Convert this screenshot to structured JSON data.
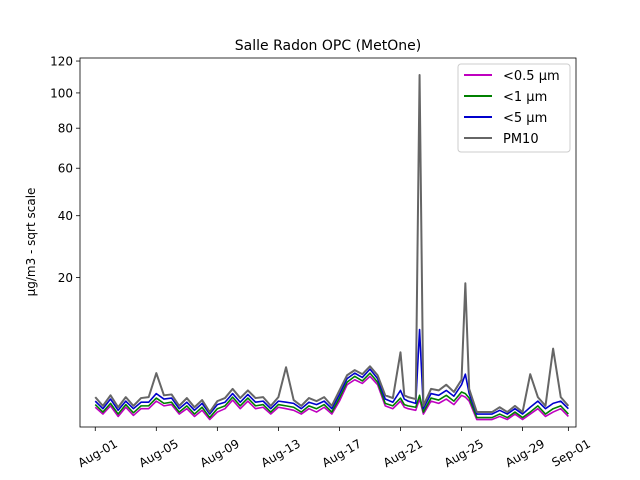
{
  "chart_data": {
    "type": "line",
    "title": "Salle Radon OPC (MetOne)",
    "xlabel": "",
    "ylabel": "µg/m3 - sqrt scale",
    "yscale": "sqrt",
    "ylim": [
      0,
      122
    ],
    "xlim": [
      "2023-07-31T00:00",
      "2023-09-01T12:00"
    ],
    "x_ticks": [
      "2023-08-01",
      "2023-08-05",
      "2023-08-09",
      "2023-08-13",
      "2023-08-17",
      "2023-08-21",
      "2023-08-25",
      "2023-08-29",
      "2023-09-01"
    ],
    "x_tick_labels": [
      "Aug-01",
      "Aug-05",
      "Aug-09",
      "Aug-13",
      "Aug-17",
      "Aug-21",
      "Aug-25",
      "Aug-29",
      "Sep-01"
    ],
    "y_ticks": [
      20,
      40,
      60,
      80,
      100,
      120
    ],
    "y_tick_labels": [
      "20",
      "40",
      "60",
      "80",
      "100",
      "120"
    ],
    "grid": false,
    "legend_position": "top-right",
    "x": [
      "2023-08-01T00:00",
      "2023-08-01T12:00",
      "2023-08-02T00:00",
      "2023-08-02T12:00",
      "2023-08-03T00:00",
      "2023-08-03T12:00",
      "2023-08-04T00:00",
      "2023-08-04T12:00",
      "2023-08-05T00:00",
      "2023-08-05T12:00",
      "2023-08-06T00:00",
      "2023-08-06T12:00",
      "2023-08-07T00:00",
      "2023-08-07T12:00",
      "2023-08-08T00:00",
      "2023-08-08T12:00",
      "2023-08-09T00:00",
      "2023-08-09T12:00",
      "2023-08-10T00:00",
      "2023-08-10T12:00",
      "2023-08-11T00:00",
      "2023-08-11T12:00",
      "2023-08-12T00:00",
      "2023-08-12T12:00",
      "2023-08-13T00:00",
      "2023-08-13T12:00",
      "2023-08-14T00:00",
      "2023-08-14T12:00",
      "2023-08-15T00:00",
      "2023-08-15T12:00",
      "2023-08-16T00:00",
      "2023-08-16T12:00",
      "2023-08-17T00:00",
      "2023-08-17T12:00",
      "2023-08-18T00:00",
      "2023-08-18T12:00",
      "2023-08-19T00:00",
      "2023-08-19T12:00",
      "2023-08-20T00:00",
      "2023-08-20T12:00",
      "2023-08-21T00:00",
      "2023-08-21T06:00",
      "2023-08-21T12:00",
      "2023-08-22T00:00",
      "2023-08-22T06:00",
      "2023-08-22T12:00",
      "2023-08-23T00:00",
      "2023-08-23T12:00",
      "2023-08-24T00:00",
      "2023-08-24T12:00",
      "2023-08-25T00:00",
      "2023-08-25T06:00",
      "2023-08-25T12:00",
      "2023-08-26T00:00",
      "2023-08-26T12:00",
      "2023-08-27T00:00",
      "2023-08-27T12:00",
      "2023-08-28T00:00",
      "2023-08-28T12:00",
      "2023-08-29T00:00",
      "2023-08-29T12:00",
      "2023-08-30T00:00",
      "2023-08-30T12:00",
      "2023-08-31T00:00",
      "2023-08-31T12:00",
      "2023-09-01T00:00"
    ],
    "series": [
      {
        "name": "<0.5 µm",
        "color": "#bf00bf",
        "values": [
          0.35,
          0.15,
          0.4,
          0.1,
          0.35,
          0.12,
          0.3,
          0.3,
          0.6,
          0.4,
          0.45,
          0.15,
          0.3,
          0.1,
          0.25,
          0.05,
          0.2,
          0.3,
          0.65,
          0.3,
          0.6,
          0.3,
          0.35,
          0.15,
          0.35,
          0.3,
          0.25,
          0.15,
          0.3,
          0.2,
          0.35,
          0.15,
          0.6,
          1.6,
          2.0,
          1.7,
          2.3,
          1.6,
          0.4,
          0.3,
          0.6,
          0.35,
          0.3,
          0.25,
          0.7,
          0.15,
          0.6,
          0.5,
          0.7,
          0.45,
          0.9,
          0.8,
          0.6,
          0.05,
          0.05,
          0.05,
          0.1,
          0.05,
          0.15,
          0.05,
          0.15,
          0.3,
          0.1,
          0.2,
          0.3,
          0.1
        ]
      },
      {
        "name": "<1 µm",
        "color": "#008000",
        "values": [
          0.45,
          0.2,
          0.5,
          0.15,
          0.45,
          0.18,
          0.4,
          0.4,
          0.75,
          0.5,
          0.55,
          0.2,
          0.4,
          0.15,
          0.35,
          0.08,
          0.3,
          0.4,
          0.8,
          0.4,
          0.75,
          0.4,
          0.45,
          0.2,
          0.45,
          0.4,
          0.35,
          0.2,
          0.4,
          0.3,
          0.45,
          0.2,
          0.75,
          1.8,
          2.3,
          1.9,
          2.6,
          1.8,
          0.5,
          0.4,
          0.75,
          0.45,
          0.4,
          0.35,
          0.9,
          0.2,
          0.75,
          0.65,
          0.9,
          0.6,
          1.1,
          1.0,
          0.75,
          0.08,
          0.08,
          0.08,
          0.15,
          0.08,
          0.2,
          0.08,
          0.2,
          0.4,
          0.15,
          0.3,
          0.4,
          0.15
        ]
      },
      {
        "name": "<5 µm",
        "color": "#0000cc",
        "values": [
          0.6,
          0.3,
          0.7,
          0.25,
          0.6,
          0.3,
          0.55,
          0.55,
          1.0,
          0.7,
          0.75,
          0.3,
          0.55,
          0.25,
          0.5,
          0.15,
          0.45,
          0.55,
          1.0,
          0.55,
          0.95,
          0.55,
          0.6,
          0.3,
          0.6,
          0.55,
          0.5,
          0.3,
          0.55,
          0.45,
          0.6,
          0.3,
          0.95,
          2.1,
          2.6,
          2.2,
          3.0,
          2.1,
          0.7,
          0.55,
          1.2,
          0.7,
          0.6,
          0.5,
          8.5,
          0.3,
          1.0,
          0.9,
          1.2,
          0.85,
          1.6,
          2.5,
          1.0,
          0.15,
          0.15,
          0.15,
          0.25,
          0.15,
          0.3,
          0.15,
          0.35,
          0.6,
          0.3,
          0.5,
          0.6,
          0.3
        ]
      },
      {
        "name": "PM10",
        "color": "#666666",
        "values": [
          0.8,
          0.4,
          0.9,
          0.35,
          0.8,
          0.4,
          0.75,
          0.8,
          2.6,
          0.9,
          0.95,
          0.4,
          0.75,
          0.35,
          0.65,
          0.2,
          0.6,
          0.75,
          1.3,
          0.75,
          1.2,
          0.75,
          0.8,
          0.4,
          0.8,
          3.2,
          0.65,
          0.4,
          0.75,
          0.6,
          0.8,
          0.4,
          1.2,
          2.4,
          2.9,
          2.5,
          3.3,
          2.4,
          0.9,
          0.75,
          5.0,
          0.9,
          0.8,
          0.7,
          111.0,
          0.4,
          1.3,
          1.2,
          1.6,
          1.1,
          2.0,
          18.5,
          1.3,
          0.2,
          0.2,
          0.2,
          0.35,
          0.2,
          0.4,
          0.2,
          2.5,
          0.8,
          0.4,
          5.5,
          0.8,
          0.4
        ]
      }
    ]
  }
}
